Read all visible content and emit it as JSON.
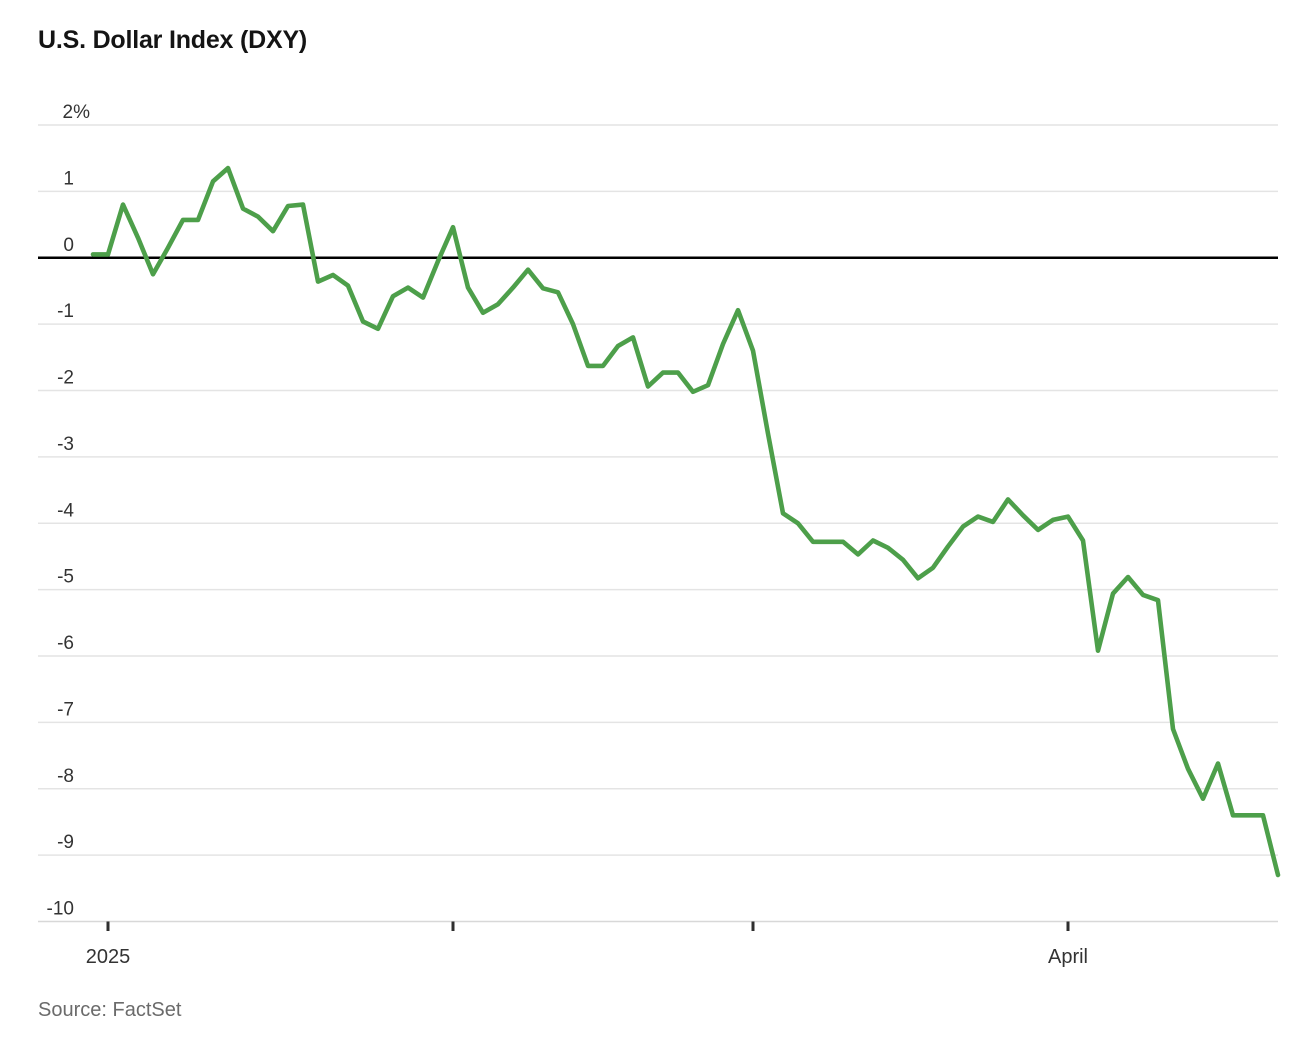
{
  "chart_data": {
    "type": "line",
    "title": "U.S. Dollar Index (DXY)",
    "source": "Source: FactSet",
    "unit": "%",
    "grid": true,
    "legend": "none",
    "line_color": "#4d9f4a",
    "zero_line_color": "#000000",
    "ylim": [
      -10,
      2
    ],
    "y_ticks": [
      {
        "label": "2%",
        "value": 2
      },
      {
        "label": "1",
        "value": 1
      },
      {
        "label": "0",
        "value": 0
      },
      {
        "label": "-1",
        "value": -1
      },
      {
        "label": "-2",
        "value": -2
      },
      {
        "label": "-3",
        "value": -3
      },
      {
        "label": "-4",
        "value": -4
      },
      {
        "label": "-5",
        "value": -5
      },
      {
        "label": "-6",
        "value": -6
      },
      {
        "label": "-7",
        "value": -7
      },
      {
        "label": "-8",
        "value": -8
      },
      {
        "label": "-9",
        "value": -9
      },
      {
        "label": "-10",
        "value": -10
      }
    ],
    "x_ticks": [
      {
        "label": "2025",
        "index": 1
      },
      {
        "label": "",
        "index": 24
      },
      {
        "label": "",
        "index": 44
      },
      {
        "label": "April",
        "index": 65
      }
    ],
    "values": [
      0.05,
      0.05,
      0.8,
      0.3,
      -0.25,
      0.15,
      0.57,
      0.57,
      1.15,
      1.35,
      0.74,
      0.62,
      0.4,
      0.78,
      0.8,
      -0.36,
      -0.26,
      -0.42,
      -0.96,
      -1.07,
      -0.58,
      -0.45,
      -0.6,
      -0.05,
      0.46,
      -0.45,
      -0.83,
      -0.7,
      -0.45,
      -0.18,
      -0.46,
      -0.52,
      -1.0,
      -1.63,
      -1.63,
      -1.33,
      -1.2,
      -1.94,
      -1.73,
      -1.73,
      -2.02,
      -1.92,
      -1.3,
      -0.79,
      -1.4,
      -2.65,
      -3.85,
      -4.0,
      -4.28,
      -4.28,
      -4.28,
      -4.47,
      -4.26,
      -4.37,
      -4.55,
      -4.83,
      -4.67,
      -4.35,
      -4.05,
      -3.9,
      -3.98,
      -3.64,
      -3.88,
      -4.1,
      -3.95,
      -3.9,
      -4.26,
      -5.92,
      -5.06,
      -4.81,
      -5.08,
      -5.16,
      -7.1,
      -7.7,
      -8.15,
      -7.62,
      -8.4,
      -8.4,
      -8.4,
      -9.3
    ]
  }
}
